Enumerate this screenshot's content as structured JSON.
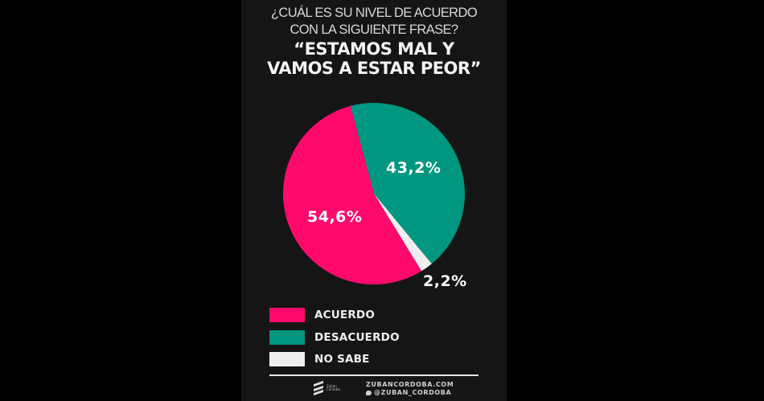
{
  "header": {
    "question_line1": "¿CUÁL ES SU NIVEL DE ACUERDO",
    "question_line2": "CON LA SIGUIENTE FRASE?",
    "quote_line1": "“ESTAMOS MAL Y",
    "quote_line2": "VAMOS A ESTAR PEOR”"
  },
  "colors": {
    "background": "#161515",
    "acuerdo": "#ff0a6c",
    "desacuerdo": "#009680",
    "no_sabe": "#eeeeee"
  },
  "chart_data": {
    "type": "pie",
    "title": "¿Cuál es su nivel de acuerdo con la siguiente frase? “Estamos mal y vamos a estar peor”",
    "categories": [
      "ACUERDO",
      "DESACUERDO",
      "NO SABE"
    ],
    "values": [
      54.6,
      43.2,
      2.2
    ],
    "labels": [
      "54,6%",
      "43,2%",
      "2,2%"
    ],
    "colors": [
      "#ff0a6c",
      "#009680",
      "#eeeeee"
    ],
    "legend_position": "bottom-left",
    "unit": "%"
  },
  "legend": {
    "items": [
      {
        "label": "ACUERDO",
        "color": "#ff0a6c"
      },
      {
        "label": "DESACUERDO",
        "color": "#009680"
      },
      {
        "label": "NO SABE",
        "color": "#eeeeee"
      }
    ]
  },
  "footer": {
    "logo_text": "Zuban Córdoba",
    "website": "ZUBANCORDOBA.COM",
    "twitter": "@ZUBAN_CORDOBA"
  }
}
